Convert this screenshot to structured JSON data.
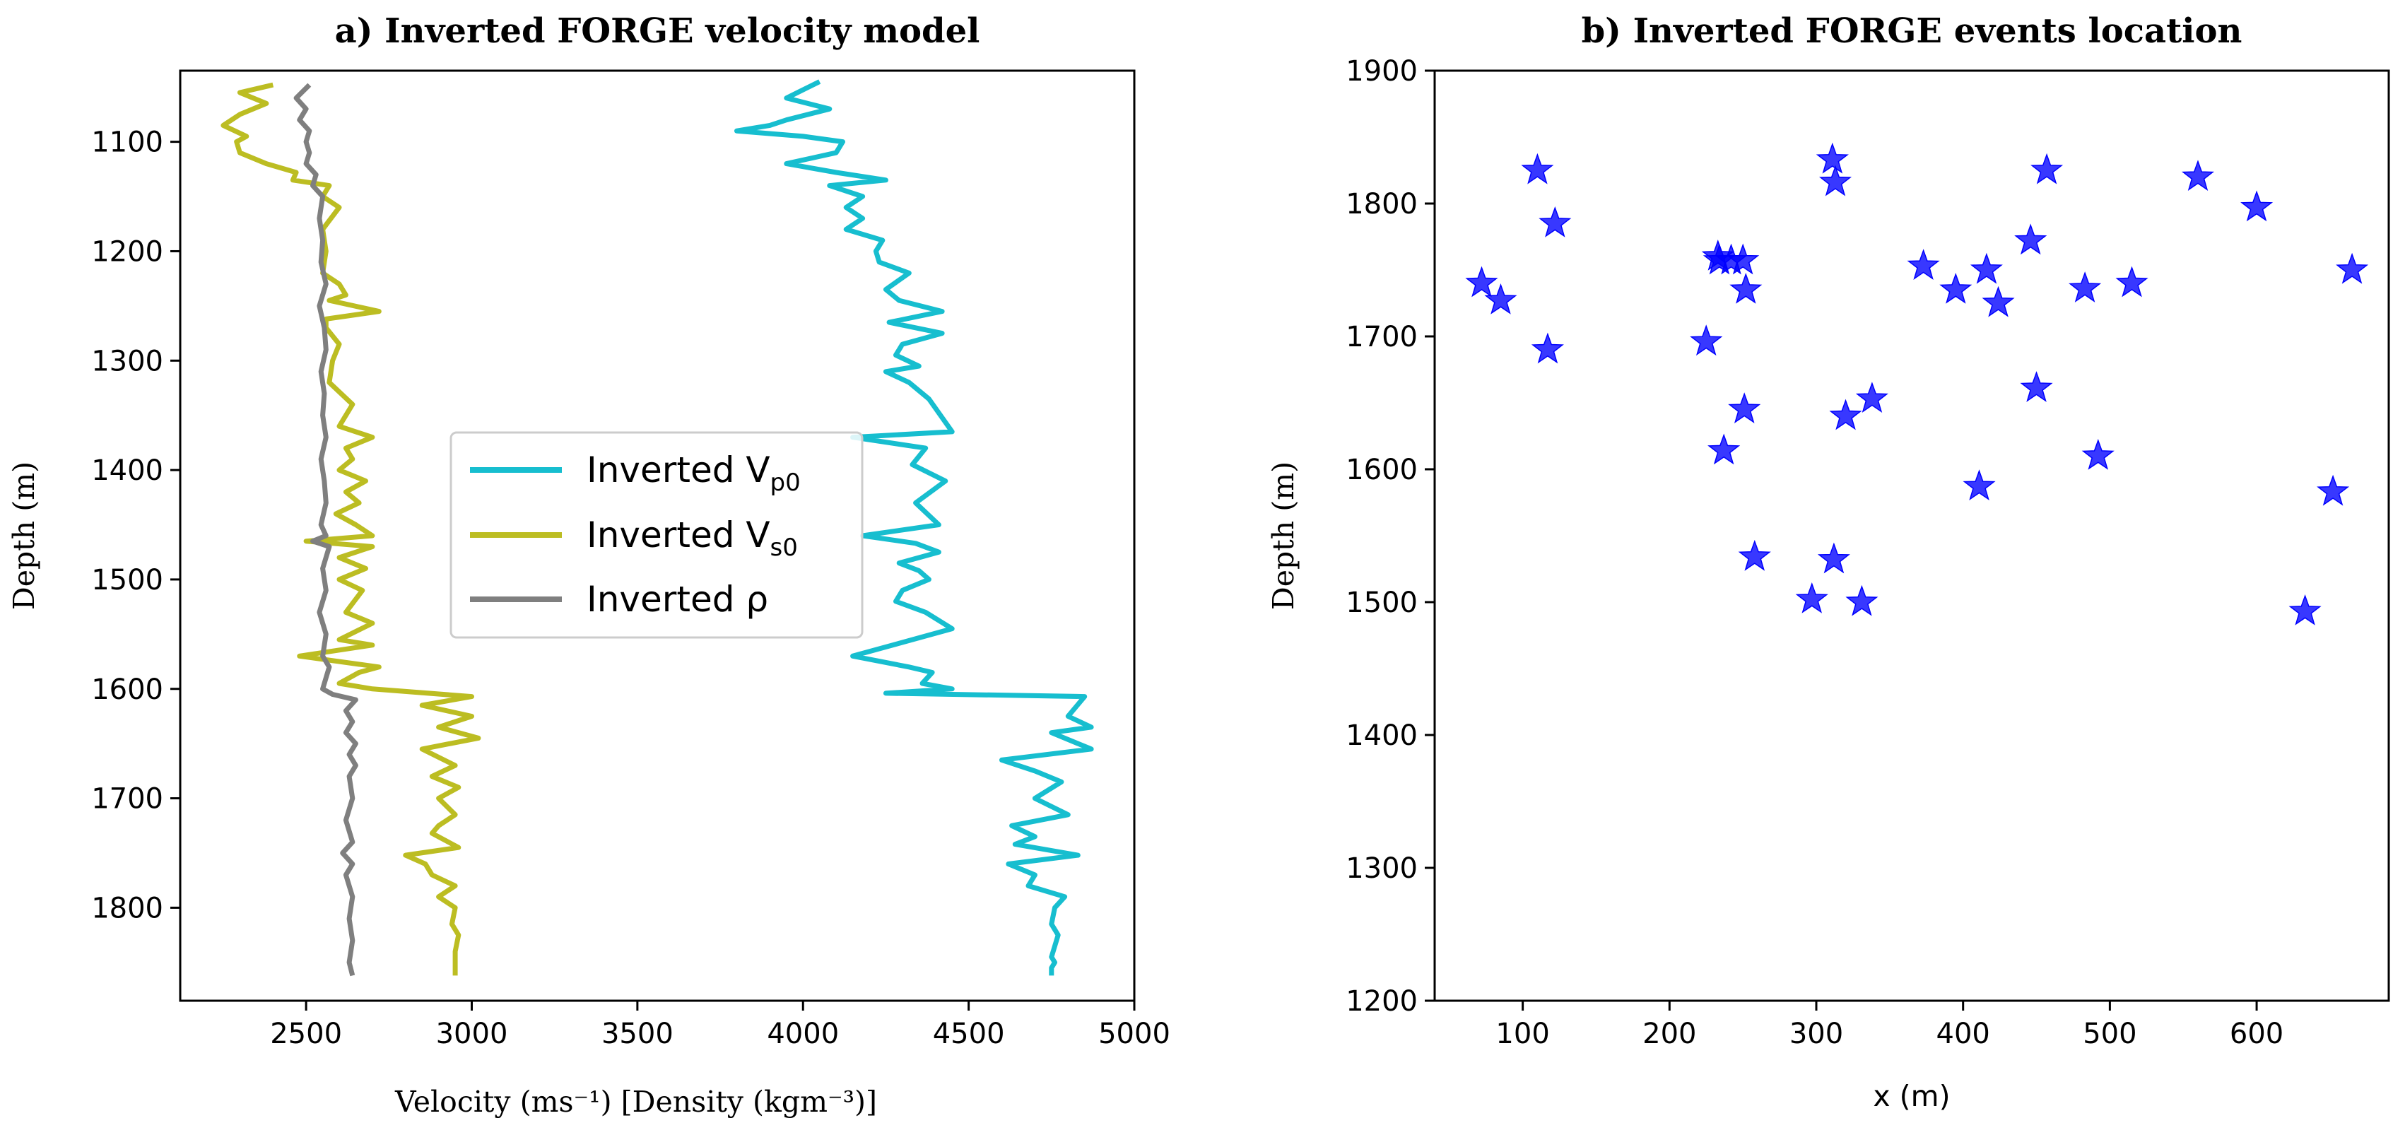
{
  "chart_data": [
    {
      "type": "line",
      "title": "a) Inverted FORGE velocity model",
      "xlabel": "Velocity (ms⁻¹)     [Density (kgm⁻³)]",
      "ylabel": "Depth (m)",
      "xlim": [
        2120,
        5000
      ],
      "ylim": [
        1885,
        1035
      ],
      "y_inverted": true,
      "xticks": [
        2500,
        3000,
        3500,
        4000,
        4500,
        5000
      ],
      "yticks": [
        1100,
        1200,
        1300,
        1400,
        1500,
        1600,
        1700,
        1800
      ],
      "legend": {
        "position": "center-left"
      },
      "series": [
        {
          "name": "Inverted Vp0",
          "legend_text": "Inverted V",
          "legend_sub": "p0",
          "color": "#17BECF",
          "points": [
            [
              4050,
              1045
            ],
            [
              3950,
              1060
            ],
            [
              4080,
              1070
            ],
            [
              3950,
              1080
            ],
            [
              3900,
              1085
            ],
            [
              3800,
              1090
            ],
            [
              4000,
              1095
            ],
            [
              4120,
              1100
            ],
            [
              4100,
              1110
            ],
            [
              3950,
              1120
            ],
            [
              4100,
              1128
            ],
            [
              4250,
              1135
            ],
            [
              4080,
              1140
            ],
            [
              4180,
              1150
            ],
            [
              4130,
              1160
            ],
            [
              4180,
              1170
            ],
            [
              4130,
              1180
            ],
            [
              4240,
              1190
            ],
            [
              4220,
              1200
            ],
            [
              4230,
              1210
            ],
            [
              4320,
              1220
            ],
            [
              4250,
              1235
            ],
            [
              4290,
              1245
            ],
            [
              4420,
              1255
            ],
            [
              4260,
              1265
            ],
            [
              4420,
              1275
            ],
            [
              4300,
              1285
            ],
            [
              4280,
              1295
            ],
            [
              4350,
              1305
            ],
            [
              4250,
              1310
            ],
            [
              4320,
              1320
            ],
            [
              4380,
              1335
            ],
            [
              4450,
              1365
            ],
            [
              4150,
              1370
            ],
            [
              4370,
              1380
            ],
            [
              4330,
              1395
            ],
            [
              4430,
              1410
            ],
            [
              4340,
              1430
            ],
            [
              4410,
              1450
            ],
            [
              4180,
              1460
            ],
            [
              4340,
              1467
            ],
            [
              4410,
              1475
            ],
            [
              4290,
              1485
            ],
            [
              4350,
              1492
            ],
            [
              4380,
              1500
            ],
            [
              4300,
              1510
            ],
            [
              4280,
              1520
            ],
            [
              4370,
              1530
            ],
            [
              4450,
              1545
            ],
            [
              4150,
              1570
            ],
            [
              4320,
              1580
            ],
            [
              4390,
              1585
            ],
            [
              4360,
              1595
            ],
            [
              4450,
              1600
            ],
            [
              4250,
              1604
            ],
            [
              4850,
              1607
            ],
            [
              4800,
              1625
            ],
            [
              4870,
              1635
            ],
            [
              4750,
              1640
            ],
            [
              4870,
              1655
            ],
            [
              4600,
              1665
            ],
            [
              4700,
              1675
            ],
            [
              4780,
              1685
            ],
            [
              4700,
              1700
            ],
            [
              4800,
              1715
            ],
            [
              4630,
              1725
            ],
            [
              4700,
              1735
            ],
            [
              4640,
              1742
            ],
            [
              4830,
              1752
            ],
            [
              4620,
              1760
            ],
            [
              4700,
              1770
            ],
            [
              4680,
              1780
            ],
            [
              4790,
              1790
            ],
            [
              4760,
              1800
            ],
            [
              4750,
              1815
            ],
            [
              4770,
              1825
            ],
            [
              4760,
              1835
            ],
            [
              4750,
              1845
            ],
            [
              4760,
              1850
            ],
            [
              4750,
              1855
            ],
            [
              4750,
              1862
            ]
          ]
        },
        {
          "name": "Inverted Vs0",
          "legend_text": "Inverted V",
          "legend_sub": "s0",
          "color": "#BCBD22",
          "points": [
            [
              2400,
              1048
            ],
            [
              2300,
              1055
            ],
            [
              2380,
              1065
            ],
            [
              2300,
              1075
            ],
            [
              2250,
              1085
            ],
            [
              2320,
              1095
            ],
            [
              2290,
              1100
            ],
            [
              2300,
              1110
            ],
            [
              2380,
              1120
            ],
            [
              2470,
              1128
            ],
            [
              2460,
              1135
            ],
            [
              2570,
              1140
            ],
            [
              2550,
              1150
            ],
            [
              2600,
              1160
            ],
            [
              2570,
              1172
            ],
            [
              2550,
              1180
            ],
            [
              2560,
              1200
            ],
            [
              2550,
              1220
            ],
            [
              2600,
              1230
            ],
            [
              2620,
              1240
            ],
            [
              2570,
              1245
            ],
            [
              2720,
              1255
            ],
            [
              2560,
              1262
            ],
            [
              2560,
              1270
            ],
            [
              2600,
              1285
            ],
            [
              2580,
              1300
            ],
            [
              2570,
              1320
            ],
            [
              2640,
              1340
            ],
            [
              2600,
              1360
            ],
            [
              2700,
              1370
            ],
            [
              2620,
              1380
            ],
            [
              2640,
              1390
            ],
            [
              2600,
              1400
            ],
            [
              2680,
              1410
            ],
            [
              2620,
              1420
            ],
            [
              2660,
              1430
            ],
            [
              2590,
              1440
            ],
            [
              2650,
              1450
            ],
            [
              2700,
              1460
            ],
            [
              2500,
              1465
            ],
            [
              2700,
              1470
            ],
            [
              2600,
              1480
            ],
            [
              2680,
              1490
            ],
            [
              2600,
              1500
            ],
            [
              2670,
              1510
            ],
            [
              2620,
              1530
            ],
            [
              2700,
              1540
            ],
            [
              2600,
              1555
            ],
            [
              2700,
              1560
            ],
            [
              2480,
              1570
            ],
            [
              2720,
              1580
            ],
            [
              2660,
              1585
            ],
            [
              2600,
              1595
            ],
            [
              2700,
              1600
            ],
            [
              3000,
              1607
            ],
            [
              2850,
              1615
            ],
            [
              3000,
              1625
            ],
            [
              2900,
              1635
            ],
            [
              3020,
              1645
            ],
            [
              2850,
              1655
            ],
            [
              2950,
              1670
            ],
            [
              2880,
              1680
            ],
            [
              2960,
              1690
            ],
            [
              2900,
              1700
            ],
            [
              2950,
              1715
            ],
            [
              2900,
              1725
            ],
            [
              2880,
              1732
            ],
            [
              2960,
              1745
            ],
            [
              2800,
              1752
            ],
            [
              2860,
              1760
            ],
            [
              2880,
              1770
            ],
            [
              2950,
              1780
            ],
            [
              2900,
              1790
            ],
            [
              2950,
              1800
            ],
            [
              2940,
              1815
            ],
            [
              2960,
              1825
            ],
            [
              2950,
              1840
            ],
            [
              2950,
              1850
            ],
            [
              2950,
              1862
            ]
          ]
        },
        {
          "name": "Inverted ρ",
          "legend_text": "Inverted ρ",
          "legend_sub": "",
          "color": "#7F7F7F",
          "points": [
            [
              2510,
              1048
            ],
            [
              2470,
              1060
            ],
            [
              2500,
              1070
            ],
            [
              2480,
              1080
            ],
            [
              2510,
              1090
            ],
            [
              2500,
              1100
            ],
            [
              2510,
              1110
            ],
            [
              2500,
              1120
            ],
            [
              2530,
              1130
            ],
            [
              2520,
              1140
            ],
            [
              2550,
              1150
            ],
            [
              2540,
              1170
            ],
            [
              2550,
              1190
            ],
            [
              2545,
              1210
            ],
            [
              2560,
              1230
            ],
            [
              2540,
              1250
            ],
            [
              2555,
              1270
            ],
            [
              2560,
              1290
            ],
            [
              2545,
              1310
            ],
            [
              2555,
              1330
            ],
            [
              2550,
              1350
            ],
            [
              2560,
              1370
            ],
            [
              2545,
              1390
            ],
            [
              2555,
              1410
            ],
            [
              2560,
              1430
            ],
            [
              2545,
              1450
            ],
            [
              2560,
              1460
            ],
            [
              2520,
              1465
            ],
            [
              2570,
              1470
            ],
            [
              2550,
              1490
            ],
            [
              2560,
              1510
            ],
            [
              2540,
              1530
            ],
            [
              2560,
              1550
            ],
            [
              2550,
              1570
            ],
            [
              2570,
              1580
            ],
            [
              2550,
              1600
            ],
            [
              2580,
              1605
            ],
            [
              2650,
              1610
            ],
            [
              2620,
              1620
            ],
            [
              2640,
              1630
            ],
            [
              2620,
              1640
            ],
            [
              2650,
              1650
            ],
            [
              2630,
              1660
            ],
            [
              2650,
              1670
            ],
            [
              2630,
              1680
            ],
            [
              2640,
              1700
            ],
            [
              2620,
              1720
            ],
            [
              2640,
              1740
            ],
            [
              2610,
              1750
            ],
            [
              2640,
              1760
            ],
            [
              2620,
              1770
            ],
            [
              2640,
              1790
            ],
            [
              2630,
              1810
            ],
            [
              2640,
              1830
            ],
            [
              2630,
              1850
            ],
            [
              2640,
              1862
            ]
          ]
        }
      ]
    },
    {
      "type": "scatter",
      "title": "b) Inverted FORGE events location",
      "xlabel": "x (m)",
      "ylabel": "Depth (m)",
      "xlim": [
        40,
        690
      ],
      "ylim": [
        1200,
        1900
      ],
      "xticks": [
        100,
        200,
        300,
        400,
        500,
        600
      ],
      "yticks": [
        1200,
        1300,
        1400,
        1500,
        1600,
        1700,
        1800,
        1900
      ],
      "marker": "star",
      "color": "#0000FF",
      "x": [
        110,
        122,
        72,
        85,
        117,
        225,
        233,
        234,
        242,
        250,
        252,
        251,
        237,
        258,
        311,
        313,
        320,
        312,
        297,
        331,
        338,
        373,
        395,
        416,
        424,
        446,
        450,
        457,
        411,
        483,
        492,
        515,
        560,
        600,
        633,
        652,
        665
      ],
      "y": [
        1825,
        1785,
        1740,
        1727,
        1690,
        1696,
        1760,
        1757,
        1757,
        1757,
        1735,
        1645,
        1614,
        1534,
        1833,
        1816,
        1640,
        1532,
        1502,
        1500,
        1653,
        1753,
        1735,
        1750,
        1725,
        1772,
        1661,
        1825,
        1587,
        1736,
        1610,
        1740,
        1820,
        1797,
        1493,
        1583,
        1750
      ]
    }
  ]
}
